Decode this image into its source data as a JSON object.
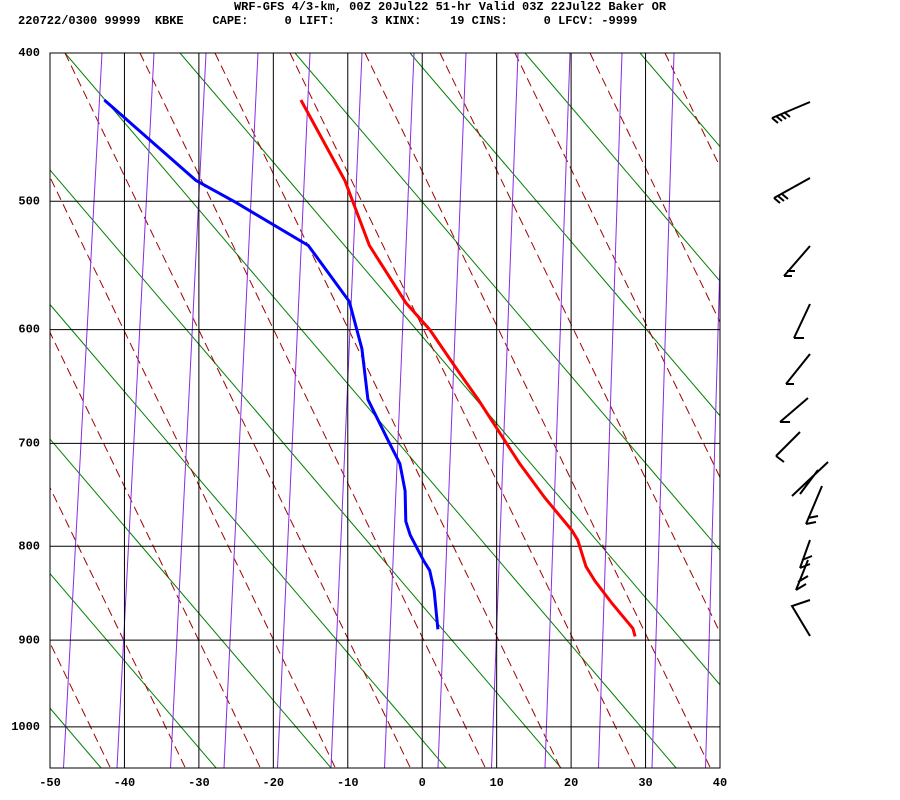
{
  "chart_data": {
    "type": "line",
    "title": "WRF-GFS 4/3-km, 00Z 20Jul22 51-hr Valid 03Z 22Jul22 Baker OR",
    "subtitle": "220722/0300 99999  KBKE    CAPE:     0 LIFT:     3 KINX:    19 CINS:     0 LFCV: -9999",
    "xlim": [
      -50,
      40
    ],
    "xticks": [
      -50,
      -40,
      -30,
      -20,
      -10,
      0,
      10,
      20,
      30,
      40
    ],
    "ylim": [
      400,
      1050
    ],
    "yticks": [
      400,
      500,
      600,
      700,
      800,
      900,
      1000
    ],
    "y_reversed": true,
    "grid": true,
    "series": [
      {
        "color": "#ff0000",
        "x": [
          -16.3,
          -10.4,
          -7.1,
          -2.2,
          1.0,
          4.8,
          7.5,
          13.1,
          16.5,
          20.1,
          20.9,
          22.0,
          23.2,
          25.5,
          28.3,
          28.6
        ],
        "values": [
          430,
          485,
          533,
          578,
          600,
          635,
          660,
          719,
          752,
          784,
          794,
          821,
          836,
          860,
          887,
          896
        ]
      },
      {
        "color": "#0000ff",
        "x": [
          -42.7,
          -30.4,
          -25.0,
          -15.3,
          -9.8,
          -8.1,
          -7.3,
          -4.6,
          -3.0,
          -2.3,
          -2.2,
          -1.6,
          0.2,
          1.0,
          1.6,
          2.1
        ],
        "values": [
          430,
          485,
          501,
          533,
          577,
          616,
          660,
          697,
          719,
          745,
          775,
          789,
          815,
          825,
          846,
          888
        ]
      }
    ]
  }
}
